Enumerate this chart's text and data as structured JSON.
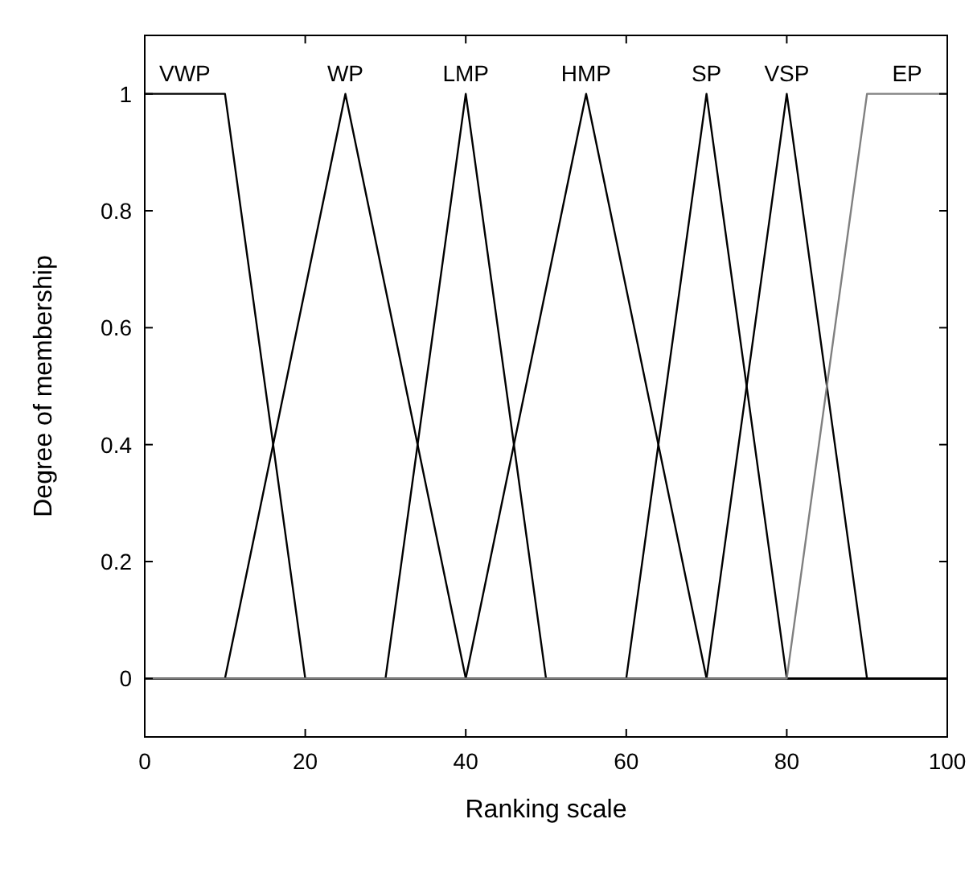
{
  "chart_data": {
    "type": "line",
    "xlabel": "Ranking scale",
    "ylabel": "Degree of membership",
    "xlim": [
      0,
      100
    ],
    "ylim": [
      -0.1,
      1.1
    ],
    "xticks": [
      0,
      20,
      40,
      60,
      80,
      100
    ],
    "yticks": [
      0,
      0.2,
      0.4,
      0.6,
      0.8,
      1
    ],
    "grid": false,
    "legend": "top",
    "marker": "none",
    "line_style": "solid",
    "series": [
      {
        "name": "VWP",
        "color": "#000000",
        "x": [
          0,
          10,
          20,
          100
        ],
        "values": [
          1,
          1,
          0,
          0
        ]
      },
      {
        "name": "WP",
        "color": "#000000",
        "x": [
          0,
          10,
          25,
          40,
          100
        ],
        "values": [
          0,
          0,
          1,
          0,
          0
        ]
      },
      {
        "name": "LMP",
        "color": "#000000",
        "x": [
          0,
          30,
          40,
          50,
          100
        ],
        "values": [
          0,
          0,
          1,
          0,
          0
        ]
      },
      {
        "name": "HMP",
        "color": "#000000",
        "x": [
          0,
          40,
          55,
          70,
          100
        ],
        "values": [
          0,
          0,
          1,
          0,
          0
        ]
      },
      {
        "name": "SP",
        "color": "#000000",
        "x": [
          0,
          60,
          70,
          80,
          100
        ],
        "values": [
          0,
          0,
          1,
          0,
          0
        ]
      },
      {
        "name": "VSP",
        "color": "#000000",
        "x": [
          0,
          70,
          80,
          90,
          100
        ],
        "values": [
          0,
          0,
          1,
          0,
          0
        ]
      },
      {
        "name": "EP",
        "color": "#808080",
        "x": [
          0,
          80,
          90,
          100
        ],
        "values": [
          0,
          0,
          1,
          1
        ]
      }
    ]
  }
}
